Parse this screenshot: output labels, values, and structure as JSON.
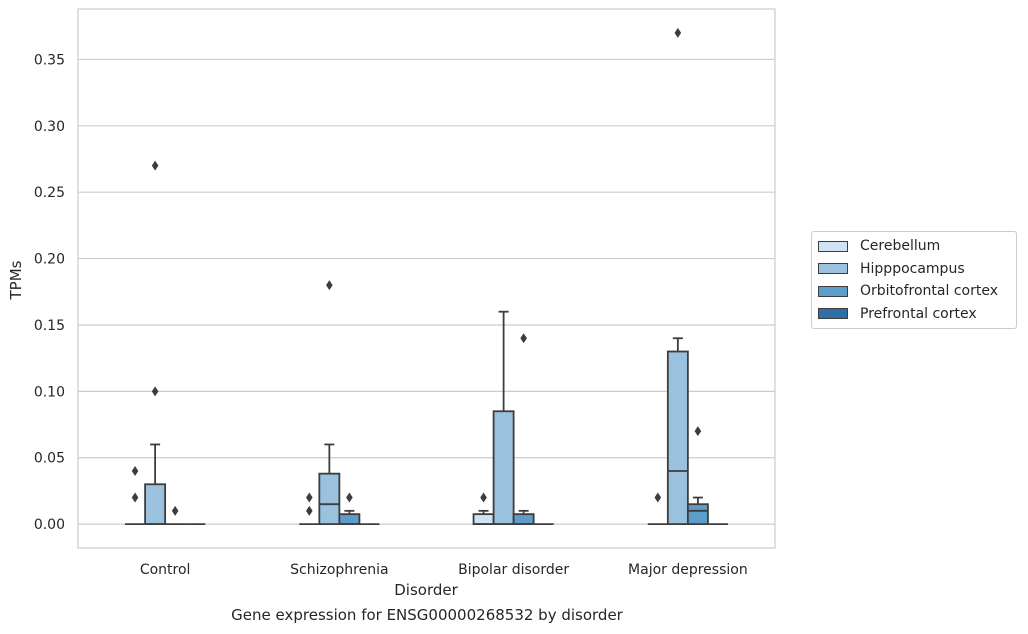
{
  "chart_data": {
    "type": "box",
    "xlabel": "Disorder",
    "ylabel": "TPMs",
    "caption": "Gene expression for ENSG00000268532 by disorder",
    "categories": [
      "Control",
      "Schizophrenia",
      "Bipolar disorder",
      "Major depression"
    ],
    "y_ticks": [
      "0.00",
      "0.05",
      "0.10",
      "0.15",
      "0.20",
      "0.25",
      "0.30",
      "0.35"
    ],
    "ylim": [
      -0.018,
      0.388
    ],
    "grid": "horizontal",
    "legend_position": "outside-right",
    "series": [
      {
        "name": "Cerebellum",
        "color": "#d1e2f2",
        "boxes": [
          {
            "q1": 0,
            "median": 0,
            "q3": 0,
            "whisker_low": 0,
            "whisker_high": 0,
            "outliers": [
              0.02,
              0.04
            ]
          },
          {
            "q1": 0,
            "median": 0,
            "q3": 0,
            "whisker_low": 0,
            "whisker_high": 0,
            "outliers": [
              0.01,
              0.02
            ]
          },
          {
            "q1": 0,
            "median": 0,
            "q3": 0.0075,
            "whisker_low": 0,
            "whisker_high": 0.01,
            "outliers": [
              0.02
            ]
          },
          {
            "q1": 0,
            "median": 0,
            "q3": 0,
            "whisker_low": 0,
            "whisker_high": 0,
            "outliers": [
              0.02
            ]
          }
        ]
      },
      {
        "name": "Hipppocampus",
        "color": "#9ac1dd",
        "boxes": [
          {
            "q1": 0,
            "median": 0,
            "q3": 0.03,
            "whisker_low": 0,
            "whisker_high": 0.06,
            "outliers": [
              0.1,
              0.27
            ]
          },
          {
            "q1": 0,
            "median": 0.015,
            "q3": 0.038,
            "whisker_low": 0,
            "whisker_high": 0.06,
            "outliers": [
              0.18
            ]
          },
          {
            "q1": 0,
            "median": 0,
            "q3": 0.085,
            "whisker_low": 0,
            "whisker_high": 0.16,
            "outliers": []
          },
          {
            "q1": 0,
            "median": 0.04,
            "q3": 0.13,
            "whisker_low": 0,
            "whisker_high": 0.14,
            "outliers": [
              0.37
            ]
          }
        ]
      },
      {
        "name": "Orbitofrontal cortex",
        "color": "#5c9dc9",
        "boxes": [
          {
            "q1": 0,
            "median": 0,
            "q3": 0,
            "whisker_low": 0,
            "whisker_high": 0,
            "outliers": [
              0.01
            ]
          },
          {
            "q1": 0,
            "median": 0,
            "q3": 0.0075,
            "whisker_low": 0,
            "whisker_high": 0.01,
            "outliers": [
              0.02
            ]
          },
          {
            "q1": 0,
            "median": 0,
            "q3": 0.0075,
            "whisker_low": 0,
            "whisker_high": 0.01,
            "outliers": [
              0.14
            ]
          },
          {
            "q1": 0,
            "median": 0.01,
            "q3": 0.015,
            "whisker_low": 0,
            "whisker_high": 0.02,
            "outliers": [
              0.07
            ]
          }
        ]
      },
      {
        "name": "Prefrontal cortex",
        "color": "#2f6fa8",
        "boxes": [
          {
            "q1": 0,
            "median": 0,
            "q3": 0,
            "whisker_low": 0,
            "whisker_high": 0,
            "outliers": []
          },
          {
            "q1": 0,
            "median": 0,
            "q3": 0,
            "whisker_low": 0,
            "whisker_high": 0,
            "outliers": []
          },
          {
            "q1": 0,
            "median": 0,
            "q3": 0,
            "whisker_low": 0,
            "whisker_high": 0,
            "outliers": []
          },
          {
            "q1": 0,
            "median": 0,
            "q3": 0,
            "whisker_low": 0,
            "whisker_high": 0,
            "outliers": []
          }
        ]
      }
    ]
  }
}
